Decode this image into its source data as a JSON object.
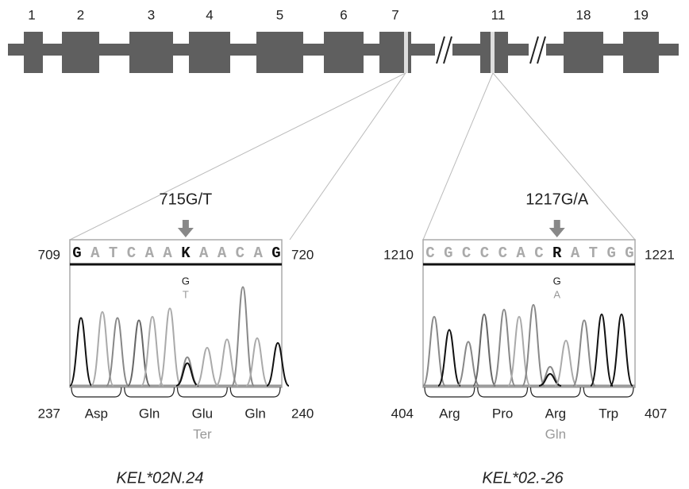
{
  "gene": {
    "exons": [
      "1",
      "2",
      "3",
      "4",
      "5",
      "6",
      "7",
      "11",
      "18",
      "19"
    ]
  },
  "panels": [
    {
      "mutation": "715G/T",
      "start": "709",
      "end": "720",
      "sequence": [
        "G",
        "A",
        "T",
        "C",
        "A",
        "A",
        "K",
        "A",
        "A",
        "C",
        "A",
        "G"
      ],
      "call": [
        "G",
        "T"
      ],
      "codon_start": "237",
      "codon_end": "240",
      "codons": [
        "Asp",
        "Gln",
        "Glu",
        "Gln"
      ],
      "altered": "Ter",
      "allele": "KEL*02N.24"
    },
    {
      "mutation": "1217G/A",
      "start": "1210",
      "end": "1221",
      "sequence": [
        "C",
        "G",
        "C",
        "C",
        "C",
        "A",
        "C",
        "R",
        "A",
        "T",
        "G",
        "G"
      ],
      "call": [
        "G",
        "A"
      ],
      "codon_start": "404",
      "codon_end": "407",
      "codons": [
        "Arg",
        "Pro",
        "Arg",
        "Trp"
      ],
      "altered": "Gln",
      "allele": "KEL*02.-26"
    }
  ]
}
